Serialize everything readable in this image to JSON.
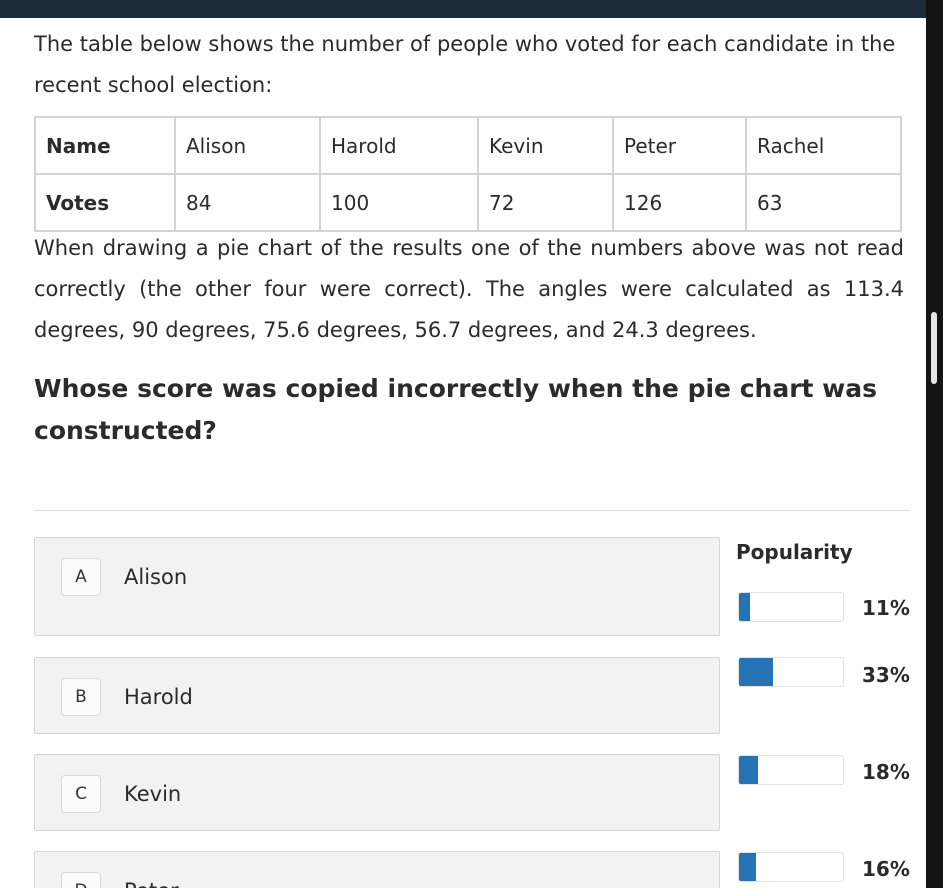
{
  "intro": "The table below shows the number of people who voted for each candidate in the recent school election:",
  "table": {
    "header_label": "Name",
    "names": [
      "Alison",
      "Harold",
      "Kevin",
      "Peter",
      "Rachel"
    ],
    "votes_label": "Votes",
    "votes": [
      "84",
      "100",
      "72",
      "126",
      "63"
    ]
  },
  "paragraph": "When drawing a pie chart of the results one of the numbers above was not read correctly (the other four were correct). The angles were calculated as 113.4 degrees, 90 degrees, 75.6 degrees, 56.7 degrees, and 24.3 degrees.",
  "question": "Whose score was copied incorrectly when the pie chart was constructed?",
  "popularity_title": "Popularity",
  "options": [
    {
      "letter": "A",
      "name": "Alison",
      "percent": "11%",
      "fraction": 0.11
    },
    {
      "letter": "B",
      "name": "Harold",
      "percent": "33%",
      "fraction": 0.33
    },
    {
      "letter": "C",
      "name": "Kevin",
      "percent": "18%",
      "fraction": 0.18
    },
    {
      "letter": "D",
      "name": "Peter",
      "percent": "16%",
      "fraction": 0.16
    }
  ],
  "colors": {
    "accent": "#2673b5",
    "topbar": "#1d2b3a",
    "option_bg": "#f2f2f2"
  }
}
